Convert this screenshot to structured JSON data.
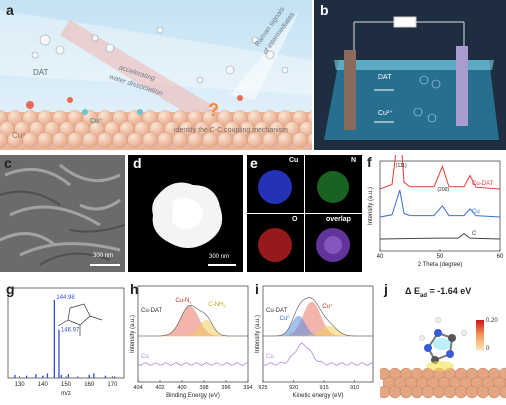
{
  "panels": {
    "a": {
      "label": "a",
      "dat": "DAT",
      "cu_plus": "Cu⁺",
      "cu0": "Cu⁰",
      "accel1": "accelerating",
      "accel2": "water dissociation",
      "identify": "identify the C-C coupling mechanism",
      "raman1": "Raman signals",
      "raman2": "of intermediates",
      "qmark": "?"
    },
    "b": {
      "label": "b",
      "dat": "DAT",
      "cu2": "Cu²⁺"
    },
    "c": {
      "label": "c",
      "scale": "300 nm"
    },
    "d": {
      "label": "d",
      "scale": "300 nm"
    },
    "e": {
      "label": "e",
      "cu": "Cu",
      "n": "N",
      "o": "O",
      "overlap": "overlap"
    },
    "g": {
      "label": "g"
    },
    "h": {
      "label": "h"
    },
    "i": {
      "label": "i"
    },
    "j": {
      "label": "j",
      "energy": "Δ E",
      "energy_sub": "ad",
      "energy_val": " = -1.64 eV",
      "cbar_max": "0.20",
      "cbar_min": "0"
    }
  },
  "chart_data": [
    {
      "type": "line",
      "panel": "f",
      "xlabel": "2 Theta (degree)",
      "ylabel": "Intensity (a.u.)",
      "xlim": [
        40,
        60
      ],
      "xticks": [
        40,
        50,
        60
      ],
      "peak_labels": [
        "(111)",
        "(200)"
      ],
      "series": [
        {
          "name": "Cu-DAT",
          "color": "#e23b3b",
          "x": [
            38,
            42,
            43.3,
            44,
            45,
            49,
            50.4,
            51.5,
            54,
            55,
            56,
            61
          ],
          "y": [
            0,
            0.1,
            1.5,
            0.15,
            0.05,
            0.05,
            0.5,
            0.05,
            0.05,
            0.3,
            0.04,
            0
          ]
        },
        {
          "name": "Cu",
          "color": "#3a6fd8",
          "x": [
            38,
            42,
            43.3,
            44,
            45,
            49,
            50.4,
            51.5,
            54,
            55,
            56,
            61
          ],
          "y": [
            0,
            0.05,
            0.6,
            0.08,
            0.03,
            0.03,
            0.25,
            0.03,
            0.03,
            0.18,
            0.03,
            0
          ]
        },
        {
          "name": "C",
          "color": "#444444",
          "x": [
            38,
            45,
            50,
            53,
            54,
            55,
            57,
            61
          ],
          "y": [
            0,
            0.01,
            0.02,
            0.02,
            0.12,
            0.02,
            0.01,
            0
          ]
        }
      ]
    },
    {
      "type": "bar",
      "panel": "g",
      "xlabel": "m/z",
      "xlim": [
        125,
        175
      ],
      "xticks": [
        130,
        140,
        150,
        160,
        170
      ],
      "peak_labels": [
        "144.98",
        "146.97"
      ],
      "x": [
        128,
        133,
        137,
        140,
        142,
        144.98,
        146.97,
        148,
        151,
        155,
        160,
        162,
        167,
        171
      ],
      "values": [
        0.04,
        0.03,
        0.05,
        0.03,
        0.06,
        1.0,
        0.62,
        0.04,
        0.05,
        0.02,
        0.04,
        0.06,
        0.03,
        0.02
      ]
    },
    {
      "type": "line",
      "panel": "h",
      "xlabel": "Binding Energy (eV)",
      "ylabel": "Intensity (a.u.)",
      "xlim": [
        404,
        394
      ],
      "xticks": [
        404,
        402,
        400,
        398,
        396,
        394
      ],
      "annotations": [
        "Cu-N",
        "x",
        "C-NH",
        "2"
      ],
      "series": [
        {
          "name": "Cu-DAT",
          "label_text": "Cu-DAT",
          "color": "#e8786a"
        },
        {
          "name": "Cu",
          "label_text": "Cu",
          "color": "#b38adb"
        }
      ]
    },
    {
      "type": "line",
      "panel": "i",
      "xlabel": "Kinetic energy (eV)",
      "ylabel": "Intensity (a.u.)",
      "xlim": [
        925,
        907
      ],
      "xticks": [
        925,
        920,
        915,
        910
      ],
      "annotations": [
        "Cu⁺",
        "Cu⁰"
      ],
      "series": [
        {
          "name": "Cu-DAT",
          "label_text": "Cu-DAT",
          "color": "#e8786a"
        },
        {
          "name": "Cu",
          "label_text": "Cu",
          "color": "#b38adb"
        }
      ]
    }
  ]
}
